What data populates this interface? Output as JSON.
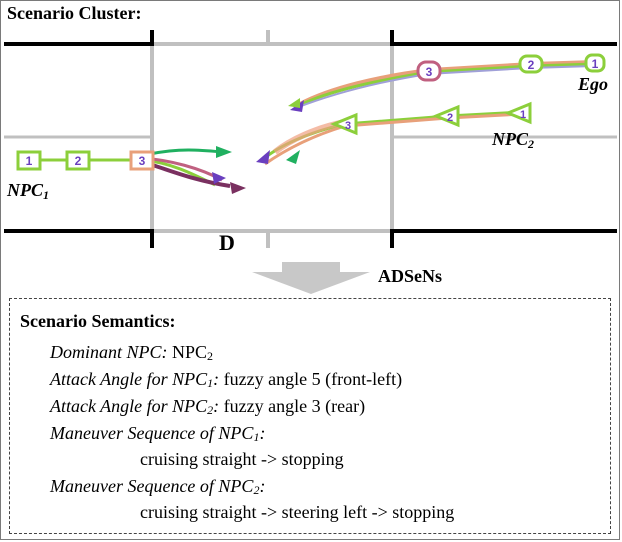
{
  "cluster": {
    "title": "Scenario Cluster:",
    "intersection_label": "D",
    "ego_label": "Ego",
    "npc1_label": "NPC",
    "npc1_sub": "1",
    "npc2_label": "NPC",
    "npc2_sub": "2",
    "ego_markers": [
      "1",
      "2",
      "3"
    ],
    "npc1_markers": [
      "1",
      "2",
      "3"
    ],
    "npc2_markers": [
      "1",
      "2",
      "3"
    ]
  },
  "arrow_label": "ADSeNs",
  "semantics": {
    "title": "Scenario Semantics:",
    "dominant": {
      "key": "Dominant NPC:",
      "value_main": "NPC",
      "value_sub": "2"
    },
    "angle1": {
      "key_pre": "Attack Angle for NPC",
      "key_sub": "1",
      "key_post": ":",
      "value": "fuzzy angle 5 (front-left)"
    },
    "angle2": {
      "key_pre": "Attack Angle for NPC",
      "key_sub": "2",
      "key_post": ":",
      "value": "fuzzy angle 3 (rear)"
    },
    "seq1": {
      "key_pre": "Maneuver Sequence of NPC",
      "key_sub": "1",
      "key_post": ":",
      "value": "cruising straight -> stopping"
    },
    "seq2": {
      "key_pre": "Maneuver Sequence of NPC",
      "key_sub": "2",
      "key_post": ":",
      "value": "cruising straight -> steering left -> stopping"
    }
  },
  "colors": {
    "marker_green": "#8ccf3b",
    "marker_purple": "#6a3fbf",
    "road_line": "#000000",
    "lane_gray": "#c0c0c0"
  }
}
